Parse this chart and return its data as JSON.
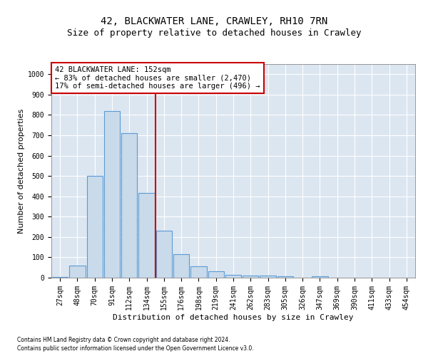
{
  "title1": "42, BLACKWATER LANE, CRAWLEY, RH10 7RN",
  "title2": "Size of property relative to detached houses in Crawley",
  "xlabel": "Distribution of detached houses by size in Crawley",
  "ylabel": "Number of detached properties",
  "footnote1": "Contains HM Land Registry data © Crown copyright and database right 2024.",
  "footnote2": "Contains public sector information licensed under the Open Government Licence v3.0.",
  "bin_labels": [
    "27sqm",
    "48sqm",
    "70sqm",
    "91sqm",
    "112sqm",
    "134sqm",
    "155sqm",
    "176sqm",
    "198sqm",
    "219sqm",
    "241sqm",
    "262sqm",
    "283sqm",
    "305sqm",
    "326sqm",
    "347sqm",
    "369sqm",
    "390sqm",
    "411sqm",
    "433sqm",
    "454sqm"
  ],
  "bar_values": [
    5,
    60,
    500,
    820,
    710,
    415,
    230,
    115,
    57,
    30,
    13,
    12,
    10,
    7,
    0,
    8,
    0,
    0,
    0,
    0,
    0
  ],
  "bar_color": "#c9daea",
  "bar_edge_color": "#5b9bd5",
  "bar_edge_width": 0.8,
  "property_line_color": "#cc0000",
  "annotation_text": "42 BLACKWATER LANE: 152sqm\n← 83% of detached houses are smaller (2,470)\n17% of semi-detached houses are larger (496) →",
  "annotation_box_color": "#ffffff",
  "annotation_box_edge_color": "#cc0000",
  "ylim": [
    0,
    1050
  ],
  "yticks": [
    0,
    100,
    200,
    300,
    400,
    500,
    600,
    700,
    800,
    900,
    1000
  ],
  "plot_bg_color": "#dce6f1",
  "grid_color": "#ffffff",
  "title1_fontsize": 10,
  "title2_fontsize": 9,
  "xlabel_fontsize": 8,
  "ylabel_fontsize": 8,
  "tick_fontsize": 7,
  "annotation_fontsize": 7.5,
  "footnote_fontsize": 5.5
}
